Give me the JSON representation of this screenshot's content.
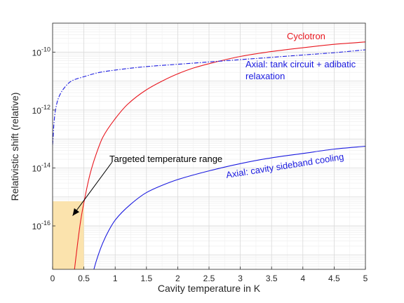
{
  "chart_data": {
    "type": "line",
    "title": "",
    "xlabel": "Cavity temperature in K",
    "ylabel": "Relativistic shift (relative)",
    "xlim": [
      0,
      5
    ],
    "ylim_log10": [
      -17.5,
      -9
    ],
    "y_scale": "log",
    "grid": true,
    "minor_grid": true,
    "x_ticks": [
      {
        "value": 0,
        "label": "0"
      },
      {
        "value": 0.5,
        "label": "0.5"
      },
      {
        "value": 1,
        "label": "1"
      },
      {
        "value": 1.5,
        "label": "1.5"
      },
      {
        "value": 2,
        "label": "2"
      },
      {
        "value": 2.5,
        "label": "2.5"
      },
      {
        "value": 3,
        "label": "3"
      },
      {
        "value": 3.5,
        "label": "3.5"
      },
      {
        "value": 4,
        "label": "4"
      },
      {
        "value": 4.5,
        "label": "4.5"
      },
      {
        "value": 5,
        "label": "5"
      }
    ],
    "y_ticks": [
      {
        "exp": -16,
        "base": "10",
        "sup": "-16"
      },
      {
        "exp": -14,
        "base": "10",
        "sup": "-14"
      },
      {
        "exp": -12,
        "base": "10",
        "sup": "-12"
      },
      {
        "exp": -10,
        "base": "10",
        "sup": "-10"
      }
    ],
    "series": [
      {
        "name": "Cyclotron",
        "color": "#e8171f",
        "style": "solid",
        "x": [
          0.35,
          0.4,
          0.45,
          0.5,
          0.6,
          0.7,
          0.8,
          1.0,
          1.2,
          1.5,
          1.75,
          2.0,
          2.25,
          2.5,
          3.0,
          3.5,
          4.0,
          4.5,
          5.0
        ],
        "log10_y": [
          -17.5,
          -16.6,
          -15.8,
          -15.2,
          -14.2,
          -13.5,
          -12.95,
          -12.3,
          -11.8,
          -11.3,
          -11.0,
          -10.75,
          -10.55,
          -10.4,
          -10.15,
          -9.98,
          -9.85,
          -9.73,
          -9.65
        ]
      },
      {
        "name": "Axial: tank circuit + adibatic relaxation",
        "color": "#1a1adf",
        "style": "dashdot",
        "x": [
          0.0,
          0.01,
          0.02,
          0.05,
          0.1,
          0.2,
          0.3,
          0.5,
          0.75,
          1.0,
          1.5,
          2.0,
          2.5,
          3.0,
          3.5,
          4.0,
          4.5,
          5.0
        ],
        "log10_y": [
          -13.2,
          -12.9,
          -12.5,
          -11.95,
          -11.55,
          -11.2,
          -11.0,
          -10.85,
          -10.7,
          -10.62,
          -10.5,
          -10.42,
          -10.34,
          -10.26,
          -10.18,
          -10.1,
          -10.02,
          -9.92
        ]
      },
      {
        "name": "Axial: cavity sideband cooling",
        "color": "#1a1adf",
        "style": "solid",
        "x": [
          0.66,
          0.7,
          0.8,
          0.9,
          1.0,
          1.25,
          1.5,
          1.75,
          2.0,
          2.5,
          3.0,
          3.5,
          4.0,
          4.5,
          5.0
        ],
        "log10_y": [
          -17.5,
          -17.2,
          -16.6,
          -16.15,
          -15.8,
          -15.25,
          -14.85,
          -14.6,
          -14.4,
          -14.1,
          -13.85,
          -13.65,
          -13.5,
          -13.35,
          -13.25
        ]
      }
    ],
    "annotations": [
      {
        "text": "Targeted temperature range",
        "type": "arrow",
        "from": [
          0.95,
          -13.8
        ],
        "to": [
          0.32,
          -15.65
        ]
      }
    ],
    "shaded_region": {
      "x": [
        0,
        0.5
      ],
      "log10_y": [
        -17.5,
        -15.15
      ],
      "color": "#fbe3ad"
    }
  }
}
